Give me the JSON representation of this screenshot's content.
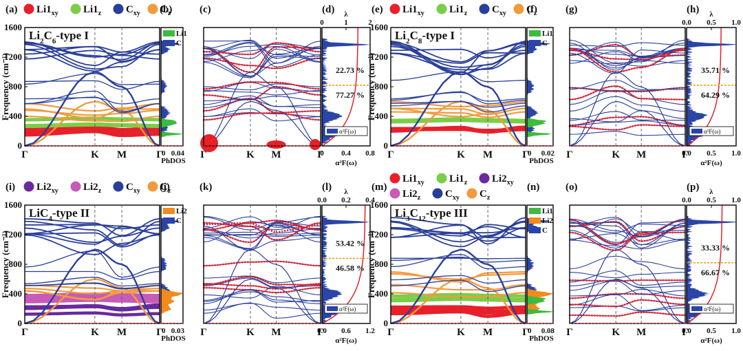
{
  "colors": {
    "Li1xy": "#e8202a",
    "Li1z": "#7ccd48",
    "Li2xy": "#6a2a9e",
    "Li2z": "#c75bb8",
    "Cxy": "#2a3f9a",
    "Cz": "#f39a3c",
    "li1_dos": "#3dbb3d",
    "li2_dos": "#f28a1c",
    "c_dos": "#2a44a8",
    "lambda_line": "#e0151b",
    "ef_line": "#e0151b",
    "split_line": "#f0a010"
  },
  "legends": [
    {
      "panel_tag": "(a)",
      "items": [
        {
          "key": "Li1xy",
          "main": "Li1",
          "sub": "xy"
        },
        {
          "key": "Li1z",
          "main": "Li1",
          "sub": "z"
        },
        {
          "key": "Cxy",
          "main": "C",
          "sub": "xy"
        },
        {
          "key": "Cz",
          "main": "C",
          "sub": "z"
        }
      ]
    },
    {
      "panel_tag": "(e)",
      "items": [
        {
          "key": "Li1xy",
          "main": "Li1",
          "sub": "xy"
        },
        {
          "key": "Li1z",
          "main": "Li1",
          "sub": "z"
        },
        {
          "key": "Cxy",
          "main": "C",
          "sub": "xy"
        },
        {
          "key": "Cz",
          "main": "C",
          "sub": "z"
        }
      ]
    },
    {
      "panel_tag": "(i)",
      "items": [
        {
          "key": "Li2xy",
          "main": "Li2",
          "sub": "xy"
        },
        {
          "key": "Li2z",
          "main": "Li2",
          "sub": "z"
        },
        {
          "key": "Cxy",
          "main": "C",
          "sub": "xy"
        },
        {
          "key": "Cz",
          "main": "C",
          "sub": "z"
        }
      ]
    },
    {
      "panel_tag": "(m)",
      "rows": [
        [
          {
            "key": "Li1xy",
            "main": "Li1",
            "sub": "xy"
          },
          {
            "key": "Li1z",
            "main": "Li1",
            "sub": "z"
          },
          {
            "key": "Li2xy",
            "main": "Li2",
            "sub": "xy"
          }
        ],
        [
          {
            "key": "Li2z",
            "main": "Li2",
            "sub": "z"
          },
          {
            "key": "Cxy",
            "main": "C",
            "sub": "xy"
          },
          {
            "key": "Cz",
            "main": "C",
            "sub": "z"
          }
        ]
      ]
    }
  ],
  "chart_data": [
    {
      "type": "line",
      "group": "Li2C6-type I",
      "compound": {
        "main": "Li",
        "sub1": "2",
        "mid": "C",
        "sub2": "6",
        "suffix": "-type I"
      },
      "panels": {
        "bands": {
          "tag": "(a)",
          "ylabel": "Frequency (cm⁻¹)",
          "ylim": [
            0,
            1600
          ],
          "yticks": [
            0,
            400,
            800,
            1200,
            1600
          ],
          "kpoints": [
            "Γ",
            "K",
            "M",
            "Γ"
          ]
        },
        "phdos": {
          "tag": "(b)",
          "xlabel": "PhDOS",
          "xticks": [
            "0",
            "0.04"
          ],
          "xlim": [
            0,
            0.04
          ],
          "legend": [
            "Li1",
            "C"
          ],
          "species": [
            "li1",
            "c"
          ]
        },
        "eph": {
          "tag": "(c)",
          "kpoints": [
            "Γ",
            "K",
            "M",
            "Γ"
          ]
        },
        "a2f": {
          "tag": "(d)",
          "xlabel": "α²F(ω)",
          "xlim": [
            0,
            0.8
          ],
          "xticks": [
            "0",
            "0.4",
            "0.8"
          ],
          "lambda_label": "λ",
          "lambda_lim": [
            0,
            2
          ],
          "lambda_ticks": [
            "0",
            "1",
            "2"
          ],
          "split_freq": 820,
          "pct_high": "22.73 %",
          "pct_low": "77.27 %",
          "lambda_final": 1.5,
          "legend": "α²F(ω)"
        }
      }
    },
    {
      "type": "line",
      "group": "Li2C8-type I",
      "compound": {
        "main": "Li",
        "sub1": "2",
        "mid": "C",
        "sub2": "8",
        "suffix": "-type I"
      },
      "panels": {
        "bands": {
          "tag": "(e)",
          "ylabel": "Frequency (cm⁻¹)",
          "ylim": [
            0,
            1600
          ],
          "yticks": [
            0,
            400,
            800,
            1200,
            1600
          ],
          "kpoints": [
            "Γ",
            "K",
            "M",
            "Γ"
          ]
        },
        "phdos": {
          "tag": "(f)",
          "xlabel": "PhDOS",
          "xticks": [
            "0",
            "0.02"
          ],
          "xlim": [
            0,
            0.02
          ],
          "legend": [
            "Li1",
            "C"
          ],
          "species": [
            "li1",
            "c"
          ]
        },
        "eph": {
          "tag": "(g)",
          "kpoints": [
            "Γ",
            "K",
            "M",
            "Γ"
          ]
        },
        "a2f": {
          "tag": "(h)",
          "xlabel": "α²F(ω)",
          "xlim": [
            0,
            1.0
          ],
          "xticks": [
            "0.0",
            "0.5",
            "1.0"
          ],
          "lambda_label": "λ",
          "lambda_lim": [
            0,
            1
          ],
          "lambda_ticks": [
            "0.0",
            "0.5",
            "1.0"
          ],
          "split_freq": 820,
          "pct_high": "35.71 %",
          "pct_low": "64.29 %",
          "lambda_final": 0.7,
          "legend": "α²F(ω)"
        }
      }
    },
    {
      "type": "line",
      "group": "LiC4-type II",
      "compound": {
        "main": "LiC",
        "sub1": "4",
        "mid": "",
        "sub2": "",
        "suffix": "-type II"
      },
      "panels": {
        "bands": {
          "tag": "(i)",
          "ylabel": "Frequency (cm⁻¹)",
          "ylim": [
            0,
            1600
          ],
          "yticks": [
            0,
            400,
            800,
            1200,
            1600
          ],
          "kpoints": [
            "Γ",
            "K",
            "M",
            "Γ"
          ]
        },
        "phdos": {
          "tag": "(j)",
          "xlabel": "PhDOS",
          "xticks": [
            "0",
            "0.03"
          ],
          "xlim": [
            0,
            0.03
          ],
          "legend": [
            "Li2",
            "C"
          ],
          "species": [
            "li2",
            "c"
          ]
        },
        "eph": {
          "tag": "(k)",
          "kpoints": [
            "Γ",
            "K",
            "M",
            "Γ"
          ]
        },
        "a2f": {
          "tag": "(l)",
          "xlabel": "α²F(ω)",
          "xlim": [
            0,
            1.2
          ],
          "xticks": [
            "0.0",
            "0.6",
            "1.2"
          ],
          "lambda_label": "λ",
          "lambda_lim": [
            0,
            0.4
          ],
          "lambda_ticks": [
            "0.0",
            "0.2",
            "0.4"
          ],
          "split_freq": 880,
          "pct_high": "53.42 %",
          "pct_low": "46.58 %",
          "lambda_final": 0.36,
          "legend": "α²F(ω)"
        }
      }
    },
    {
      "type": "line",
      "group": "Li3C12-type III",
      "compound": {
        "main": "Li",
        "sub1": "3",
        "mid": "C",
        "sub2": "12",
        "suffix": "-type III"
      },
      "panels": {
        "bands": {
          "tag": "(m)",
          "ylabel": "Frequency (cm⁻¹)",
          "ylim": [
            0,
            1600
          ],
          "yticks": [
            0,
            400,
            800,
            1200,
            1600
          ],
          "kpoints": [
            "Γ",
            "K",
            "M",
            "Γ"
          ]
        },
        "phdos": {
          "tag": "(n)",
          "xlabel": "PhDOS",
          "xticks": [
            "0",
            "0.08"
          ],
          "xlim": [
            0,
            0.08
          ],
          "legend": [
            "Li1",
            "Li2",
            "C"
          ],
          "species": [
            "li1",
            "li2",
            "c"
          ]
        },
        "eph": {
          "tag": "(o)",
          "kpoints": [
            "Γ",
            "K",
            "M",
            "Γ"
          ]
        },
        "a2f": {
          "tag": "(p)",
          "xlabel": "α²F(ω)",
          "xlim": [
            0,
            1.0
          ],
          "xticks": [
            "0.0",
            "0.5",
            "1.0"
          ],
          "lambda_label": "λ",
          "lambda_lim": [
            0,
            1
          ],
          "lambda_ticks": [
            "0.0",
            "0.5",
            "1.0"
          ],
          "split_freq": 820,
          "pct_high": "33.33 %",
          "pct_low": "66.67 %",
          "lambda_final": 0.72,
          "legend": "α²F(ω)"
        }
      }
    }
  ]
}
